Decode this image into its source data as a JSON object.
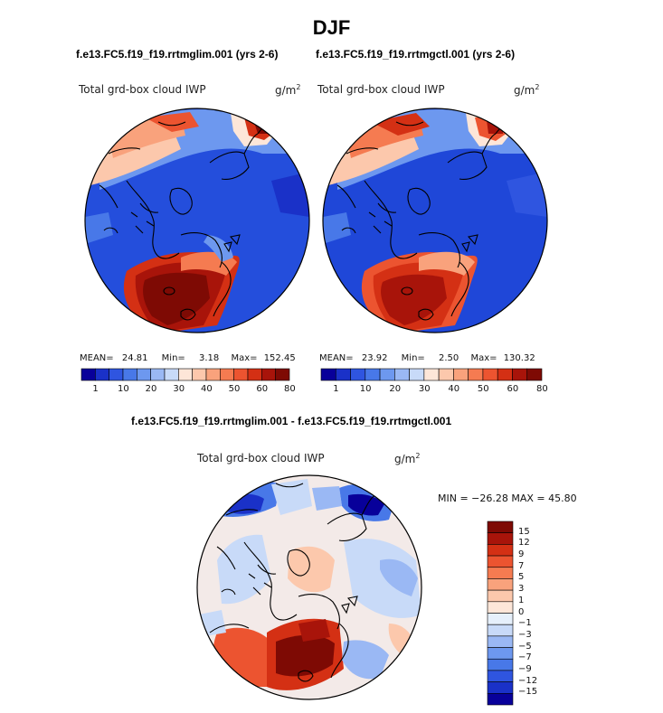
{
  "figure": {
    "title": "DJF",
    "left_case": "f.e13.FC5.f19_f19.rrtmglim.001 (yrs 2-6)",
    "right_case": "f.e13.FC5.f19_f19.rrtmgctl.001 (yrs 2-6)",
    "diff_case": "f.e13.FC5.f19_f19.rrtmglim.001 - f.e13.FC5.f19_f19.rrtmgctl.001"
  },
  "colors": {
    "abs_scale": [
      "#08009a",
      "#1a31c8",
      "#2f55e0",
      "#4878e8",
      "#6d98ef",
      "#9ab8f4",
      "#c8daf8",
      "#fde6d8",
      "#fcc8ac",
      "#f9a27c",
      "#f57b51",
      "#ec5430",
      "#d43014",
      "#a8140a",
      "#7e0a04"
    ],
    "diff_scale": [
      "#08009a",
      "#1a31c8",
      "#2f55e0",
      "#4878e8",
      "#6d98ef",
      "#9ab8f4",
      "#c8daf8",
      "#e6f0fb",
      "#fde6d8",
      "#fcc8ac",
      "#f9a27c",
      "#f57b51",
      "#ec5430",
      "#d43014",
      "#a8140a",
      "#7e0a04"
    ]
  },
  "chart_data": [
    {
      "type": "heatmap",
      "projection": "north-polar-stereographic",
      "title": "Total grd-box cloud IWP",
      "units_base": "g/m",
      "units_exp": "2",
      "stats": {
        "mean_label": "MEAN=",
        "mean": "24.81",
        "min_label": "Min=",
        "min": "3.18",
        "max_label": "Max=",
        "max": "152.45"
      },
      "colorbar": {
        "orientation": "horizontal",
        "levels": [
          "1",
          "10",
          "20",
          "30",
          "40",
          "50",
          "60",
          "80"
        ]
      }
    },
    {
      "type": "heatmap",
      "projection": "north-polar-stereographic",
      "title": "Total grd-box cloud IWP",
      "units_base": "g/m",
      "units_exp": "2",
      "stats": {
        "mean_label": "MEAN=",
        "mean": "23.92",
        "min_label": "Min=",
        "min": "2.50",
        "max_label": "Max=",
        "max": "130.32"
      },
      "colorbar": {
        "orientation": "horizontal",
        "levels": [
          "1",
          "10",
          "20",
          "30",
          "40",
          "50",
          "60",
          "80"
        ]
      }
    },
    {
      "type": "heatmap",
      "projection": "north-polar-stereographic",
      "title": "Total grd-box cloud IWP",
      "units_base": "g/m",
      "units_exp": "2",
      "stats_text": "MIN = −26.28  MAX =  45.80",
      "colorbar": {
        "orientation": "vertical",
        "levels": [
          "15",
          "12",
          "9",
          "7",
          "5",
          "3",
          "1",
          "0",
          "−1",
          "−3",
          "−5",
          "−7",
          "−9",
          "−12",
          "−15"
        ]
      }
    }
  ]
}
